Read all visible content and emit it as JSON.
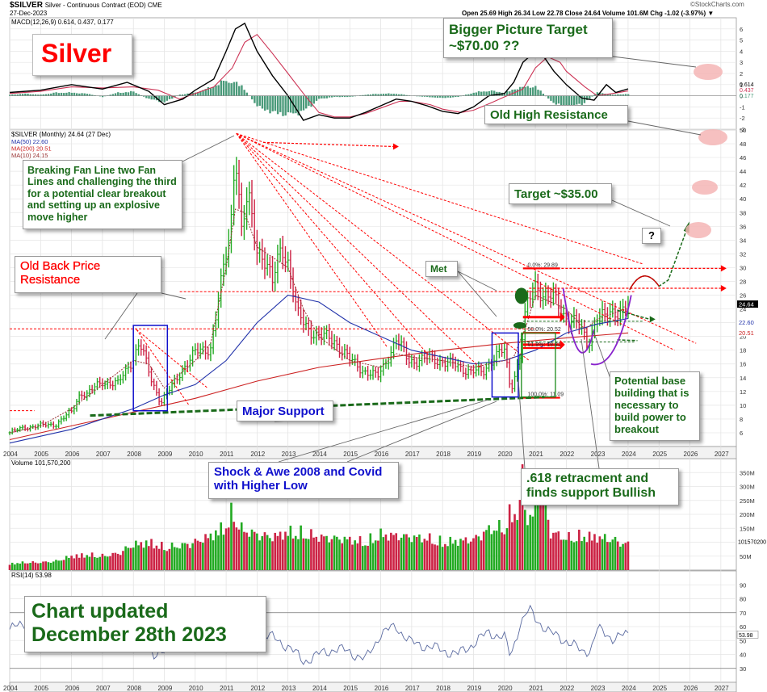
{
  "header": {
    "symbol": "$SILVER",
    "description": "Silver - Continuous Contract (EOD) CME",
    "date": "27-Dec-2023",
    "quote": "Open 25.69  High 26.34  Low 22.78  Close 24.64  Volume 101.6M  Chg -1.02 (-3.97%) ▼",
    "watermark": "©StockCharts.com"
  },
  "colors": {
    "up": "#22aa22",
    "down": "#cc2244",
    "macd": "#000000",
    "signal": "#cc3355",
    "hist": "#4a9a7a",
    "ma50": "#2233aa",
    "ma200": "#cc2222",
    "ma10": "#993333",
    "annot_red": "#ff0000",
    "annot_green": "#1a6a1a",
    "annot_blue": "#1010cc",
    "target_circle": "#f5b5b5"
  },
  "annotations": {
    "silver_title": "Silver",
    "bigger_target": "Bigger Picture Target ~$70.00 ??",
    "old_high": "Old High Resistance",
    "breaking_fan": "Breaking Fan Line two Fan Lines and challenging the third for a potential clear breakout and setting up an explosive move higher",
    "target35": "Target ~$35.00",
    "question": "?",
    "met": "Met",
    "old_back": "Old Back Price Resistance",
    "major_support": "Major Support",
    "potential_base": "Potential base building that is necessary to build power to breakout",
    "shock": "Shock & Awe 2008 and Covid with Higher Low",
    "retrace": ".618 retracment and finds support Bullish",
    "updated": "Chart updated December 28th 2023",
    "fib0": "0.0%: 29.89",
    "fib50": "50.0%: 20.52",
    "fib618": "61.8%: 18.31",
    "fib100": "100.0%: 11.09"
  },
  "chart_data": [
    {
      "panel": "macd",
      "type": "line",
      "legend": "MACD(12,26,9) 0.614, 0.437, 0.177",
      "ylim": [
        -3,
        7
      ],
      "yticks": [
        -3,
        -2,
        -1,
        0,
        1,
        2,
        3,
        4,
        5,
        6
      ],
      "last_labels": [
        "0.614",
        "0.437",
        "0.177"
      ],
      "series": [
        {
          "name": "MACD",
          "x": [
            2004,
            2005,
            2006,
            2007,
            2007.8,
            2008.5,
            2009,
            2009.6,
            2010,
            2010.6,
            2011.0,
            2011.3,
            2011.6,
            2012,
            2012.5,
            2013,
            2013.5,
            2014,
            2014.5,
            2015,
            2015.5,
            2016,
            2016.5,
            2017,
            2017.5,
            2018,
            2018.5,
            2019,
            2019.5,
            2020,
            2020.3,
            2020.6,
            2021,
            2021.3,
            2021.6,
            2022,
            2022.5,
            2022.9,
            2023.3,
            2023.6,
            2024
          ],
          "y": [
            0.3,
            0.5,
            1.0,
            0.6,
            1.2,
            0.4,
            -0.8,
            -0.3,
            0.5,
            1.5,
            4.0,
            6.0,
            6.5,
            4.0,
            1.8,
            0.0,
            -2.2,
            -1.7,
            -2.0,
            -2.0,
            -1.5,
            -0.9,
            -0.3,
            -0.5,
            -0.9,
            -1.4,
            -1.6,
            -1.0,
            0.0,
            0.2,
            1.2,
            3.0,
            4.0,
            3.4,
            2.2,
            1.0,
            -0.2,
            -0.4,
            1.0,
            0.3,
            0.614
          ]
        },
        {
          "name": "Signal",
          "x": [
            2004,
            2005,
            2006,
            2007,
            2008,
            2008.8,
            2009.5,
            2010,
            2010.6,
            2011.2,
            2011.6,
            2012,
            2012.5,
            2013,
            2013.5,
            2014,
            2014.5,
            2015,
            2015.5,
            2016,
            2016.6,
            2017,
            2017.6,
            2018,
            2018.6,
            2019,
            2019.6,
            2020,
            2020.6,
            2021,
            2021.4,
            2021.8,
            2022,
            2022.6,
            2023,
            2023.5,
            2024
          ],
          "y": [
            0.2,
            0.4,
            0.8,
            0.7,
            0.8,
            0.5,
            -0.3,
            0.2,
            0.8,
            2.5,
            4.8,
            5.5,
            3.8,
            2.0,
            0.2,
            -1.5,
            -1.9,
            -1.9,
            -1.6,
            -1.1,
            -0.5,
            -0.5,
            -0.8,
            -1.2,
            -1.5,
            -1.3,
            -0.6,
            -0.1,
            0.6,
            2.5,
            3.5,
            3.0,
            2.2,
            0.8,
            0.0,
            0.2,
            0.437
          ]
        }
      ],
      "histogram": {
        "x": [
          2004,
          2004.5,
          2005,
          2005.5,
          2006,
          2006.5,
          2007,
          2007.5,
          2008,
          2008.5,
          2009,
          2009.5,
          2010,
          2010.5,
          2011,
          2011.5,
          2012,
          2012.5,
          2013,
          2013.5,
          2014,
          2014.5,
          2015,
          2015.5,
          2016,
          2016.5,
          2017,
          2017.5,
          2018,
          2018.5,
          2019,
          2019.5,
          2020,
          2020.5,
          2021,
          2021.5,
          2022,
          2022.5,
          2023,
          2023.5,
          2024
        ],
        "y": [
          0.1,
          0.2,
          0.1,
          0.3,
          0.3,
          0.2,
          -0.1,
          0.3,
          0.4,
          -0.3,
          -0.6,
          0.1,
          0.3,
          0.8,
          1.5,
          1.0,
          -1.0,
          -1.6,
          -1.8,
          -1.5,
          -0.3,
          -0.1,
          -0.1,
          0.1,
          0.2,
          0.2,
          0,
          -0.1,
          -0.2,
          -0.1,
          0.3,
          0.5,
          0.3,
          0.8,
          0.9,
          -0.5,
          -1.2,
          -0.8,
          0.3,
          0.1,
          0.177
        ]
      }
    },
    {
      "panel": "price",
      "type": "bar",
      "title": "$SILVER (Monthly) 24.64 (27 Dec)",
      "legend": [
        "MA(50) 22.60",
        "MA(200) 20.51",
        "MA(10) 24.15"
      ],
      "ylim": [
        4,
        50
      ],
      "yticks": [
        6,
        8,
        10,
        12,
        14,
        16,
        18,
        20,
        22,
        24,
        26,
        28,
        30,
        32,
        34,
        36,
        38,
        40,
        42,
        44,
        46,
        48,
        50
      ],
      "right_labels": [
        "24.64",
        "22.60",
        "20.51"
      ],
      "closes": {
        "x": [
          2004.0,
          2004.5,
          2005.0,
          2005.5,
          2006.0,
          2006.3,
          2006.5,
          2007.0,
          2007.5,
          2008.0,
          2008.2,
          2008.6,
          2008.9,
          2009.3,
          2009.6,
          2010.0,
          2010.5,
          2010.9,
          2011.15,
          2011.3,
          2011.5,
          2011.7,
          2012.0,
          2012.2,
          2012.5,
          2012.8,
          2013.0,
          2013.3,
          2013.6,
          2014.0,
          2014.5,
          2015.0,
          2015.5,
          2015.9,
          2016.5,
          2016.9,
          2017.5,
          2018.0,
          2018.5,
          2019.0,
          2019.3,
          2019.7,
          2020.0,
          2020.2,
          2020.5,
          2020.7,
          2021.0,
          2021.5,
          2021.9,
          2022.3,
          2022.7,
          2023.0,
          2023.3,
          2023.6,
          2023.9
        ],
        "y": [
          6.0,
          6.8,
          7.0,
          7.3,
          9.0,
          12.0,
          11.5,
          13.5,
          13.0,
          17.0,
          19.0,
          13.5,
          10.5,
          13.0,
          15.5,
          17.5,
          18.5,
          29.0,
          36.0,
          48.5,
          35.0,
          40.0,
          33.0,
          32.0,
          27.5,
          33.5,
          31.0,
          23.0,
          21.5,
          20.0,
          19.5,
          16.5,
          15.0,
          14.0,
          19.5,
          16.5,
          16.7,
          16.5,
          15.5,
          15.0,
          14.5,
          17.5,
          17.8,
          12.0,
          17.5,
          24.0,
          27.0,
          26.0,
          23.0,
          22.5,
          18.5,
          23.5,
          22.5,
          23.5,
          24.64
        ]
      },
      "ma50": {
        "x": [
          2004,
          2006,
          2008,
          2009,
          2010,
          2011,
          2012,
          2013,
          2014,
          2015,
          2016,
          2017,
          2018,
          2019,
          2020,
          2021,
          2022,
          2023,
          2024
        ],
        "y": [
          4.5,
          6.5,
          9.5,
          11.5,
          13.0,
          16.5,
          22.0,
          26.0,
          25.0,
          22.0,
          20.0,
          18.0,
          17.0,
          16.0,
          16.5,
          18.0,
          20.5,
          21.8,
          22.6
        ]
      },
      "ma200": {
        "x": [
          2004,
          2006,
          2008,
          2010,
          2012,
          2014,
          2016,
          2018,
          2020,
          2022,
          2024
        ],
        "y": [
          5.0,
          7.0,
          9.0,
          11.0,
          13.5,
          15.5,
          16.8,
          18.0,
          19.0,
          19.8,
          20.51
        ]
      },
      "ma10": {
        "x": [
          2004,
          2005,
          2006,
          2007,
          2008,
          2008.5,
          2009,
          2010,
          2010.5,
          2011,
          2011.3,
          2011.6,
          2012,
          2013,
          2013.5,
          2014,
          2015,
          2016,
          2016.5,
          2017,
          2018,
          2019,
          2020,
          2020.3,
          2020.7,
          2021,
          2022,
          2022.6,
          2023,
          2024
        ],
        "y": [
          6.0,
          7.0,
          9.5,
          13.0,
          16.5,
          16.0,
          12.5,
          16.5,
          19.0,
          30.0,
          38.5,
          38.0,
          33.0,
          30.0,
          24.0,
          20.0,
          16.5,
          15.5,
          17.5,
          17.0,
          16.5,
          15.5,
          16.5,
          17.0,
          21.5,
          26.0,
          24.0,
          21.0,
          22.5,
          24.15
        ]
      }
    },
    {
      "panel": "volume",
      "type": "bar",
      "legend": "Volume 101,570,200",
      "ylim": [
        0,
        400
      ],
      "yticks": [
        50,
        100,
        150,
        200,
        250,
        300,
        350
      ],
      "tick_labels": [
        "50M",
        "100M",
        "150M",
        "200M",
        "250M",
        "300M",
        "350M"
      ],
      "last_label": "101570200",
      "x": [
        2004.0,
        2004.5,
        2005.0,
        2005.5,
        2006.0,
        2006.5,
        2007.0,
        2007.5,
        2008.0,
        2008.5,
        2009.0,
        2009.5,
        2010.0,
        2010.5,
        2011.0,
        2011.2,
        2011.5,
        2012.0,
        2012.5,
        2013.0,
        2013.5,
        2014.0,
        2014.5,
        2015.0,
        2015.5,
        2016.0,
        2016.5,
        2017.0,
        2017.5,
        2018.0,
        2018.5,
        2019.0,
        2019.5,
        2020.0,
        2020.2,
        2020.5,
        2020.9,
        2021.1,
        2021.5,
        2022.0,
        2022.5,
        2023.0,
        2023.5,
        2023.9
      ],
      "values": [
        25,
        30,
        30,
        35,
        55,
        60,
        55,
        65,
        100,
        110,
        90,
        95,
        110,
        135,
        175,
        230,
        160,
        140,
        130,
        150,
        145,
        130,
        125,
        120,
        110,
        140,
        135,
        130,
        125,
        110,
        115,
        120,
        160,
        170,
        225,
        240,
        200,
        380,
        150,
        125,
        135,
        130,
        120,
        101.57
      ]
    },
    {
      "panel": "rsi",
      "type": "line",
      "legend": "RSI(14) 53.98",
      "ylim": [
        20,
        100
      ],
      "yticks": [
        30,
        40,
        50,
        60,
        70,
        80,
        90
      ],
      "reference_lines": [
        70,
        30
      ],
      "last_label": "53.98",
      "series": [
        {
          "name": "RSI",
          "x": [
            2004,
            2004.5,
            2005,
            2005.5,
            2006,
            2006.5,
            2007,
            2007.5,
            2008,
            2008.3,
            2008.7,
            2009,
            2009.5,
            2010,
            2010.5,
            2011,
            2011.3,
            2011.7,
            2012,
            2012.5,
            2013,
            2013.5,
            2014,
            2014.5,
            2015,
            2015.5,
            2016,
            2016.5,
            2017,
            2017.5,
            2018,
            2018.5,
            2019,
            2019.5,
            2020,
            2020.2,
            2020.5,
            2020.8,
            2021,
            2021.5,
            2022,
            2022.5,
            2022.8,
            2023,
            2023.5,
            2024
          ],
          "y": [
            58,
            62,
            57,
            64,
            70,
            62,
            60,
            63,
            66,
            55,
            35,
            45,
            55,
            60,
            68,
            75,
            82,
            60,
            56,
            52,
            46,
            35,
            40,
            44,
            42,
            36,
            55,
            60,
            48,
            46,
            43,
            40,
            48,
            56,
            52,
            38,
            62,
            72,
            66,
            55,
            50,
            42,
            44,
            58,
            52,
            53.98
          ]
        }
      ]
    }
  ],
  "x_axis": {
    "labels": [
      "2004",
      "2005",
      "2006",
      "2007",
      "2008",
      "2009",
      "2010",
      "2011",
      "2012",
      "2013",
      "2014",
      "2015",
      "2016",
      "2017",
      "2018",
      "2019",
      "2020",
      "2021",
      "2022",
      "2023",
      "2024",
      "2025",
      "2026",
      "2027"
    ],
    "range": [
      2004,
      2027.5
    ]
  }
}
